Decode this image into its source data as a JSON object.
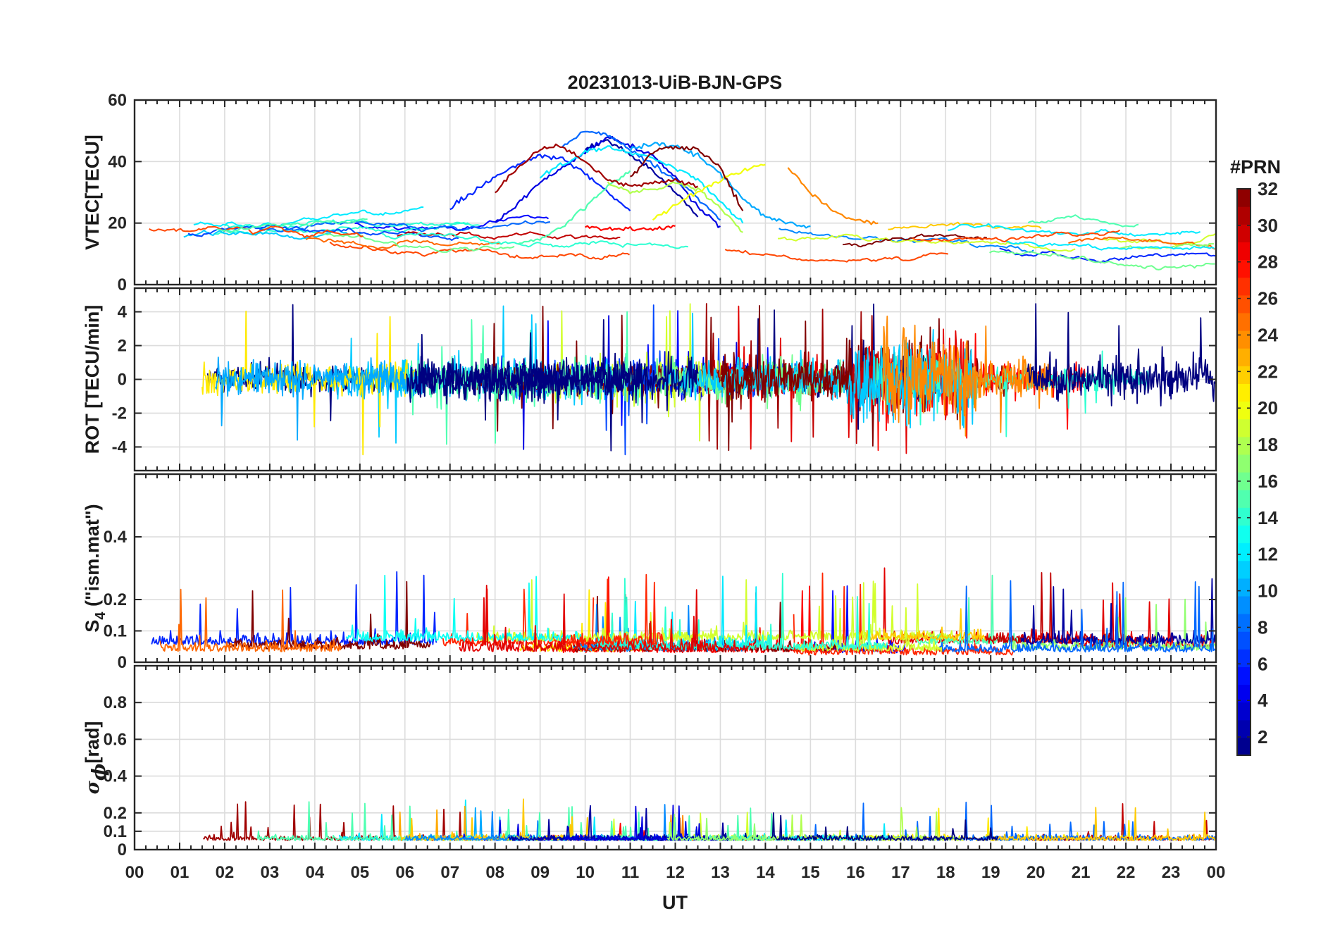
{
  "chart_data": {
    "type": "line",
    "title": "20231013-UiB-BJN-GPS",
    "xlabel": "UT",
    "x_range": [
      0,
      24
    ],
    "x_tick_labels": [
      "00",
      "01",
      "02",
      "03",
      "04",
      "05",
      "06",
      "07",
      "08",
      "09",
      "10",
      "11",
      "12",
      "13",
      "14",
      "15",
      "16",
      "17",
      "18",
      "19",
      "20",
      "21",
      "22",
      "23",
      "00"
    ],
    "grid": true,
    "colorbar": {
      "label": "#PRN",
      "range": [
        1,
        32
      ],
      "ticks": [
        2,
        4,
        6,
        8,
        10,
        12,
        14,
        16,
        18,
        20,
        22,
        24,
        26,
        28,
        30,
        32
      ],
      "colormap": "jet",
      "placement": "right"
    },
    "panels": [
      {
        "id": "vtec",
        "ylabel": "VTEC[TECU]",
        "ylim": [
          0,
          60
        ],
        "yticks": [
          0,
          20,
          40,
          60
        ],
        "series": [
          {
            "prn": 2,
            "x": [
              10.0,
              10.5,
              11.0,
              11.5,
              12.0,
              12.5
            ],
            "y": [
              44,
              47,
              42,
              37,
              30,
              22
            ]
          },
          {
            "prn": 4,
            "x": [
              8.0,
              8.5,
              9.0,
              9.5,
              10.0,
              10.5,
              11.0,
              11.5,
              12.0,
              12.5,
              13.0
            ],
            "y": [
              20,
              26,
              33,
              38,
              43,
              48,
              45,
              42,
              35,
              25,
              19
            ]
          },
          {
            "prn": 6,
            "x": [
              7.0,
              7.5,
              8.0,
              8.5,
              9.0,
              9.5,
              10.0,
              10.5,
              11.0
            ],
            "y": [
              25,
              30,
              35,
              39,
              42,
              41,
              36,
              30,
              24
            ]
          },
          {
            "prn": 8,
            "x": [
              9.5,
              10.0,
              10.5,
              11.0,
              11.5,
              12.0,
              12.5,
              13.0
            ],
            "y": [
              45,
              50,
              49,
              44,
              39,
              34,
              28,
              21
            ]
          },
          {
            "prn": 10,
            "x": [
              11.0,
              11.5,
              12.0,
              12.5,
              13.0,
              13.5,
              14.0,
              14.5,
              15.0
            ],
            "y": [
              44,
              46,
              45,
              42,
              36,
              28,
              22,
              20,
              19
            ]
          },
          {
            "prn": 12,
            "x": [
              9.0,
              9.5,
              10.0,
              10.5,
              11.0,
              11.5,
              12.0,
              12.5,
              13.0,
              13.5
            ],
            "y": [
              35,
              39,
              43,
              45,
              43,
              41,
              38,
              34,
              27,
              20
            ]
          },
          {
            "prn": 15,
            "x": [
              8.5,
              9.0,
              9.5,
              10.0,
              10.5,
              11.0
            ],
            "y": [
              13,
              15,
              19,
              25,
              32,
              37
            ]
          },
          {
            "prn": 18,
            "x": [
              10.5,
              11.0,
              11.5,
              12.0,
              12.5,
              13.0,
              13.5
            ],
            "y": [
              33,
              30,
              31,
              33,
              31,
              25,
              17
            ]
          },
          {
            "prn": 20,
            "x": [
              11.5,
              12.0,
              12.5,
              13.0,
              13.5,
              14.0
            ],
            "y": [
              21,
              26,
              30,
              34,
              37,
              39
            ]
          },
          {
            "prn": 24,
            "x": [
              14.5,
              15.0,
              15.5,
              16.0,
              16.5
            ],
            "y": [
              38,
              30,
              24,
              21,
              20
            ]
          },
          {
            "prn": 28,
            "x": [
              10.0,
              10.5,
              11.0,
              11.5,
              12.0
            ],
            "y": [
              19,
              18,
              18,
              18,
              19
            ]
          },
          {
            "prn": 31,
            "x": [
              8.0,
              8.5,
              9.0,
              9.5,
              10.0,
              10.5,
              11.0,
              11.5,
              12.0,
              12.5
            ],
            "y": [
              30,
              38,
              44,
              45,
              40,
              34,
              32,
              33,
              34,
              32
            ]
          },
          {
            "prn": 32,
            "x": [
              11.0,
              11.5,
              12.0,
              12.5,
              13.0,
              13.5
            ],
            "y": [
              35,
              43,
              45,
              44,
              38,
              24
            ]
          }
        ]
      },
      {
        "id": "rot",
        "ylabel": "ROT [TECU/min]",
        "ylim": [
          -5.4,
          5.4
        ],
        "yticks": [
          -4,
          -2,
          0,
          2,
          4
        ],
        "ytick_labels": [
          "-4",
          "-2",
          "0",
          "2",
          "4"
        ]
      },
      {
        "id": "s4",
        "ylabel": "S",
        "ylabel_sub": "4",
        "ylabel_suffix": " (\"ism.mat\")",
        "ylim": [
          0,
          0.6
        ],
        "yticks": [
          0,
          0.1,
          0.2,
          0.4
        ],
        "ytick_labels": [
          "0",
          "0.1",
          "0.2",
          "0.4"
        ]
      },
      {
        "id": "sigma",
        "ylabel": "σ",
        "ylabel_sub": "ϕ",
        "ylabel_suffix": "[rad]",
        "ylim": [
          0,
          1
        ],
        "yticks": [
          0,
          0.1,
          0.2,
          0.4,
          0.6,
          0.8
        ],
        "ytick_labels": [
          "0",
          "0.1",
          "0.2",
          "0.4",
          "0.6",
          "0.8"
        ]
      }
    ]
  }
}
